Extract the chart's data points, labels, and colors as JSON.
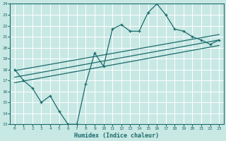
{
  "xlabel": "Humidex (Indice chaleur)",
  "ylabel": "",
  "xlim": [
    -0.5,
    23.5
  ],
  "ylim": [
    13,
    24
  ],
  "xticks": [
    0,
    1,
    2,
    3,
    4,
    5,
    6,
    7,
    8,
    9,
    10,
    11,
    12,
    13,
    14,
    15,
    16,
    17,
    18,
    19,
    20,
    21,
    22,
    23
  ],
  "yticks": [
    13,
    14,
    15,
    16,
    17,
    18,
    19,
    20,
    21,
    22,
    23,
    24
  ],
  "bg_color": "#c8e8e4",
  "line_color": "#1a6b6b",
  "grid_color": "#ffffff",
  "main_x": [
    0,
    1,
    2,
    3,
    4,
    5,
    6,
    7,
    8,
    9,
    10,
    11,
    12,
    13,
    14,
    15,
    16,
    17,
    18,
    19,
    20,
    21,
    22,
    23
  ],
  "main_y": [
    18,
    17,
    16.3,
    15,
    15.6,
    14.2,
    13,
    13,
    16.7,
    19.5,
    18.3,
    21.7,
    22.1,
    21.5,
    21.5,
    23.2,
    24,
    23,
    21.7,
    21.5,
    21,
    20.7,
    20.3,
    20.7
  ],
  "line1_x": [
    0,
    23
  ],
  "line1_y": [
    16.8,
    20.2
  ],
  "line2_x": [
    0,
    23
  ],
  "line2_y": [
    17.3,
    20.7
  ],
  "line3_x": [
    0,
    23
  ],
  "line3_y": [
    17.9,
    21.2
  ]
}
